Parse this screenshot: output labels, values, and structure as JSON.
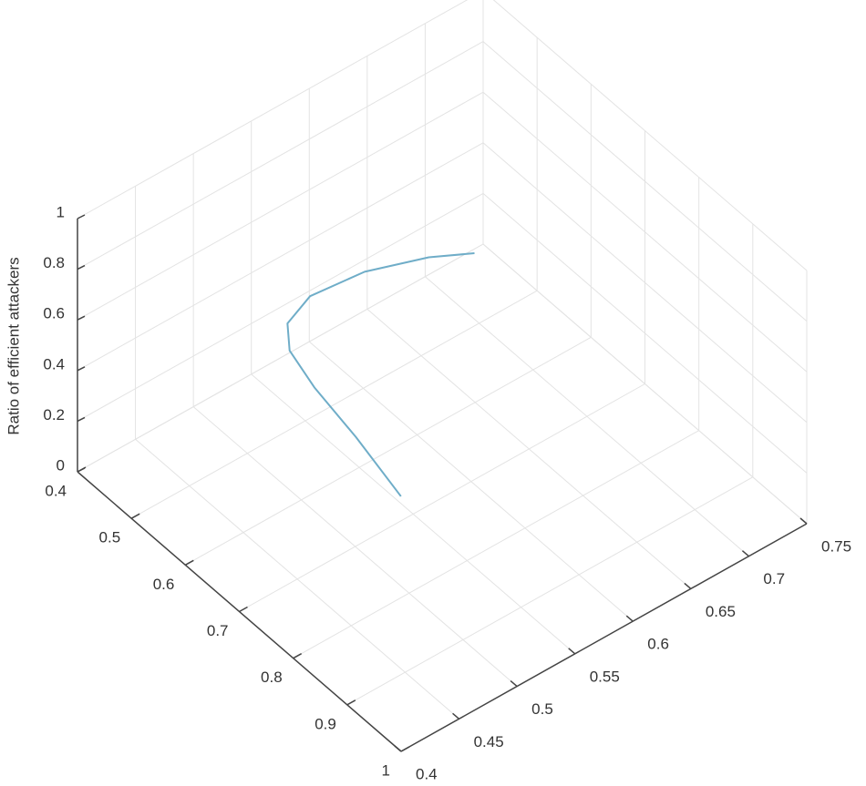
{
  "chart_data": {
    "type": "line3d",
    "zlabel": "Ratio of efficient attackers",
    "x": [
      0.701,
      0.624,
      0.562,
      0.529,
      0.525,
      0.539,
      0.58,
      0.641,
      0.702
    ],
    "y": [
      0.539,
      0.536,
      0.529,
      0.523,
      0.523,
      0.536,
      0.564,
      0.591,
      0.602
    ],
    "z": [
      0.1,
      0.2,
      0.3,
      0.4,
      0.5,
      0.6,
      0.7,
      0.8,
      0.9
    ],
    "color": "#6fadc8",
    "xlim": [
      0.4,
      1
    ],
    "xticks": [
      0.4,
      0.5,
      0.6,
      0.7,
      0.8,
      0.9,
      1
    ],
    "ylim": [
      0.4,
      0.75
    ],
    "yticks": [
      0.4,
      0.45,
      0.5,
      0.55,
      0.6,
      0.65,
      0.7,
      0.75
    ],
    "zlim": [
      0,
      1
    ],
    "zticks": [
      0,
      0.2,
      0.4,
      0.6,
      0.8,
      1
    ],
    "grid": true
  }
}
